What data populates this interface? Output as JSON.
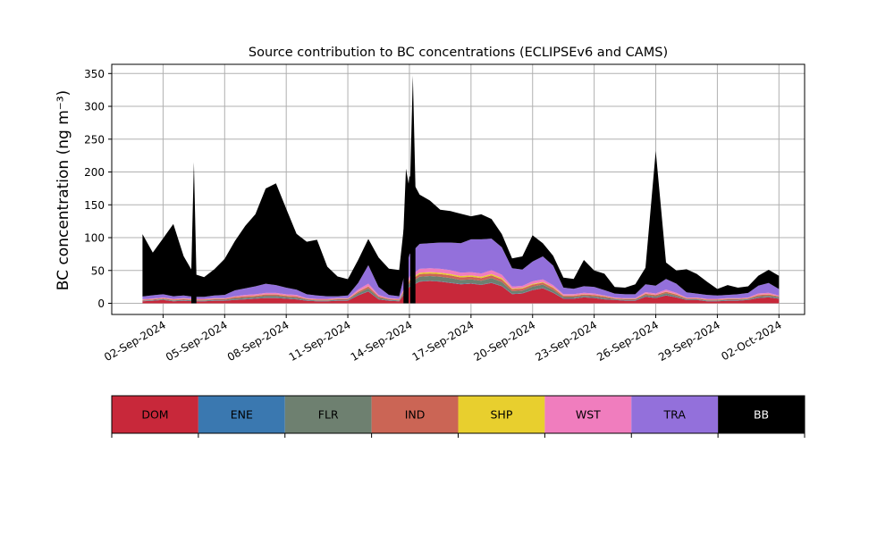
{
  "chart_data": {
    "type": "area",
    "stacked": true,
    "title": "Source contribution to BC concentrations (ECLIPSEv6 and CAMS)",
    "ylabel": "BC concentration (ng m⁻³)",
    "xlabel": "",
    "ylim": [
      -17,
      364
    ],
    "xlim": [
      "2024-08-30 12:00",
      "2024-10-03 06:00"
    ],
    "y_ticks": [
      0,
      50,
      100,
      150,
      200,
      250,
      300,
      350
    ],
    "x_ticks": [
      "02-Sep-2024",
      "05-Sep-2024",
      "08-Sep-2024",
      "11-Sep-2024",
      "14-Sep-2024",
      "17-Sep-2024",
      "20-Sep-2024",
      "23-Sep-2024",
      "26-Sep-2024",
      "29-Sep-2024",
      "02-Oct-2024"
    ],
    "grid": true,
    "legend_position": "bottom",
    "colors": {
      "DOM": "#c8283a",
      "ENE": "#3a78b0",
      "FLR": "#6e8070",
      "IND": "#cb6555",
      "SHP": "#e8cf2e",
      "WST": "#f07dbe",
      "TRA": "#9370db",
      "BB": "#000000"
    },
    "series_order": [
      "DOM",
      "ENE",
      "FLR",
      "IND",
      "SHP",
      "WST",
      "TRA",
      "BB"
    ],
    "x": [
      "2024-09-01 00:00",
      "2024-09-01 12:00",
      "2024-09-02 00:00",
      "2024-09-02 12:00",
      "2024-09-03 00:00",
      "2024-09-03 12:00",
      "2024-09-04 00:00",
      "2024-09-04 12:00",
      "2024-09-05 00:00",
      "2024-09-05 12:00",
      "2024-09-06 00:00",
      "2024-09-06 12:00",
      "2024-09-07 00:00",
      "2024-09-07 12:00",
      "2024-09-08 00:00",
      "2024-09-08 12:00",
      "2024-09-09 00:00",
      "2024-09-09 12:00",
      "2024-09-10 00:00",
      "2024-09-10 12:00",
      "2024-09-11 00:00",
      "2024-09-11 12:00",
      "2024-09-12 00:00",
      "2024-09-12 12:00",
      "2024-09-13 00:00",
      "2024-09-13 12:00",
      "2024-09-14 00:00",
      "2024-09-14 12:00",
      "2024-09-15 00:00",
      "2024-09-15 12:00",
      "2024-09-16 00:00",
      "2024-09-16 12:00",
      "2024-09-17 00:00",
      "2024-09-17 12:00",
      "2024-09-18 00:00",
      "2024-09-18 12:00",
      "2024-09-19 00:00",
      "2024-09-19 12:00",
      "2024-09-20 00:00",
      "2024-09-20 12:00",
      "2024-09-21 00:00",
      "2024-09-21 12:00",
      "2024-09-22 00:00",
      "2024-09-22 12:00",
      "2024-09-23 00:00",
      "2024-09-23 12:00",
      "2024-09-24 00:00",
      "2024-09-24 12:00",
      "2024-09-25 00:00",
      "2024-09-25 12:00",
      "2024-09-26 00:00",
      "2024-09-26 12:00",
      "2024-09-27 00:00",
      "2024-09-27 12:00",
      "2024-09-28 00:00",
      "2024-09-28 12:00",
      "2024-09-29 00:00",
      "2024-09-29 12:00",
      "2024-09-30 00:00",
      "2024-09-30 12:00",
      "2024-10-01 00:00",
      "2024-10-01 12:00",
      "2024-10-02 00:00"
    ],
    "series": [
      {
        "name": "DOM",
        "values": [
          3,
          4,
          5,
          3,
          4,
          3,
          3,
          4,
          4,
          5,
          6,
          7,
          8,
          8,
          7,
          6,
          4,
          3,
          3,
          4,
          4,
          12,
          18,
          6,
          4,
          3,
          25,
          33,
          34,
          33,
          31,
          29,
          30,
          28,
          31,
          26,
          14,
          15,
          20,
          23,
          16,
          7,
          7,
          9,
          8,
          6,
          5,
          4,
          4,
          10,
          8,
          12,
          9,
          5,
          5,
          3,
          3,
          4,
          4,
          5,
          8,
          9,
          7
        ]
      },
      {
        "name": "ENE",
        "values": [
          0.5,
          0.5,
          0.5,
          0.5,
          0.5,
          0.5,
          0.5,
          0.5,
          0.5,
          0.5,
          0.5,
          0.5,
          0.5,
          0.5,
          0.5,
          0.5,
          0.5,
          0.5,
          0.5,
          0.5,
          0.5,
          0.5,
          0.5,
          0.5,
          0.5,
          0.5,
          0.5,
          0.5,
          0.5,
          0.5,
          0.5,
          0.5,
          0.5,
          0.5,
          0.5,
          0.5,
          0.5,
          0.5,
          0.5,
          0.5,
          0.5,
          0.5,
          0.5,
          0.5,
          0.5,
          0.5,
          0.5,
          0.5,
          0.5,
          0.5,
          0.5,
          0.5,
          0.5,
          0.5,
          0.5,
          0.5,
          0.5,
          0.5,
          0.5,
          0.5,
          0.5,
          0.5,
          0.5
        ]
      },
      {
        "name": "FLR",
        "values": [
          0.5,
          0.5,
          1,
          1,
          1,
          1,
          1,
          1,
          1,
          2,
          2,
          2,
          3,
          3,
          2,
          2,
          1,
          1,
          1,
          1,
          1,
          3,
          4,
          2,
          1,
          1,
          5,
          7,
          7,
          7,
          7,
          6,
          6,
          6,
          7,
          6,
          4,
          4,
          5,
          5,
          4,
          2,
          2,
          2,
          2,
          2,
          1,
          1,
          1,
          2,
          2,
          3,
          2,
          1,
          1,
          1,
          1,
          1,
          1,
          1,
          2,
          2,
          2
        ]
      },
      {
        "name": "IND",
        "values": [
          1,
          1,
          1,
          1,
          1,
          1,
          1,
          1,
          1,
          2,
          2,
          2,
          2,
          2,
          2,
          2,
          1,
          1,
          1,
          1,
          1,
          2,
          3,
          2,
          1,
          1,
          4,
          4,
          4,
          4,
          4,
          4,
          4,
          4,
          4,
          4,
          3,
          3,
          3,
          3,
          3,
          2,
          2,
          2,
          2,
          2,
          1,
          1,
          1,
          2,
          2,
          2,
          2,
          1,
          1,
          1,
          1,
          1,
          1,
          1,
          2,
          2,
          1
        ]
      },
      {
        "name": "SHP",
        "values": [
          0.3,
          0.3,
          0.3,
          0.3,
          0.3,
          0.3,
          0.3,
          0.3,
          0.3,
          0.3,
          0.3,
          0.3,
          0.3,
          0.3,
          0.3,
          0.3,
          0.3,
          0.3,
          0.3,
          0.3,
          0.3,
          0.5,
          0.5,
          0.3,
          0.3,
          0.3,
          1,
          2,
          2,
          2,
          2,
          2,
          2,
          2,
          2,
          2,
          1,
          1,
          1,
          1,
          1,
          0.5,
          0.5,
          0.5,
          0.5,
          0.5,
          0.3,
          0.3,
          0.3,
          0.5,
          0.5,
          0.5,
          0.5,
          0.3,
          0.3,
          0.3,
          0.3,
          0.3,
          0.3,
          0.3,
          0.5,
          0.5,
          0.3
        ]
      },
      {
        "name": "WST",
        "values": [
          1,
          1,
          1,
          1,
          1,
          1,
          1,
          1,
          1,
          1,
          2,
          2,
          2,
          2,
          2,
          2,
          1,
          1,
          1,
          1,
          1,
          3,
          4,
          2,
          1,
          1,
          5,
          6,
          6,
          6,
          6,
          5,
          5,
          5,
          6,
          5,
          3,
          3,
          4,
          4,
          3,
          2,
          2,
          2,
          2,
          1,
          1,
          1,
          1,
          2,
          2,
          3,
          2,
          1,
          1,
          1,
          1,
          1,
          1,
          1,
          2,
          2,
          1
        ]
      },
      {
        "name": "TRA",
        "values": [
          4,
          5,
          5,
          4,
          4,
          3,
          3,
          4,
          5,
          9,
          10,
          12,
          14,
          12,
          10,
          8,
          6,
          5,
          4,
          3,
          4,
          10,
          28,
          12,
          5,
          4,
          34,
          38,
          38,
          40,
          42,
          45,
          50,
          52,
          48,
          42,
          28,
          25,
          30,
          35,
          30,
          10,
          8,
          10,
          10,
          8,
          6,
          6,
          6,
          12,
          12,
          16,
          14,
          8,
          6,
          6,
          5,
          5,
          6,
          7,
          12,
          15,
          10
        ]
      },
      {
        "name": "BB",
        "values": [
          95,
          65,
          85,
          110,
          60,
          35,
          30,
          40,
          55,
          75,
          95,
          110,
          145,
          155,
          120,
          85,
          80,
          85,
          45,
          30,
          25,
          35,
          40,
          45,
          40,
          40,
          120,
          75,
          65,
          50,
          48,
          45,
          35,
          38,
          30,
          20,
          15,
          20,
          40,
          20,
          15,
          15,
          15,
          40,
          25,
          25,
          10,
          10,
          15,
          25,
          205,
          25,
          20,
          35,
          30,
          20,
          10,
          15,
          10,
          10,
          15,
          20,
          20
        ]
      }
    ],
    "spikes": [
      {
        "x": "2024-09-03 12:00",
        "total": 215
      },
      {
        "x": "2024-09-13 20:00",
        "total": 205
      },
      {
        "x": "2024-09-14 04:00",
        "total": 347
      }
    ]
  }
}
